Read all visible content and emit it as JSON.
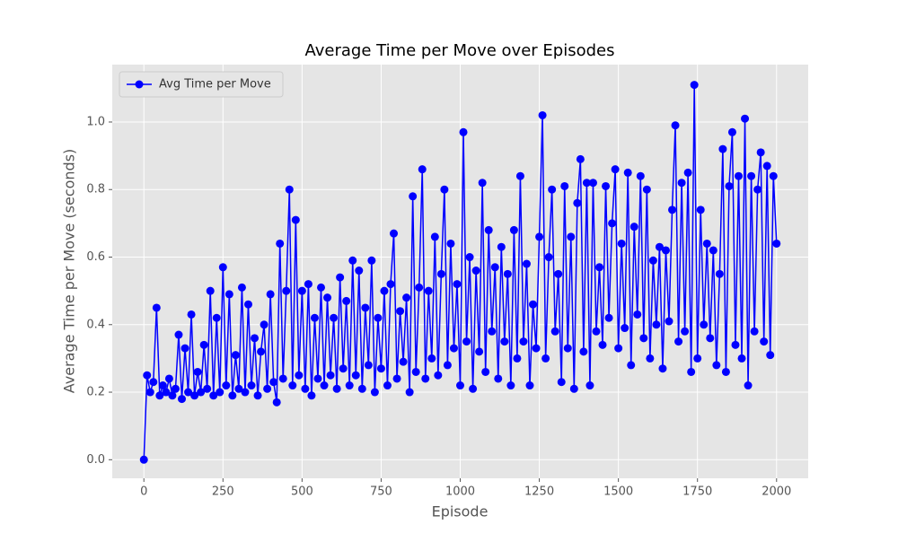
{
  "chart_data": {
    "type": "line",
    "title": "Average Time per Move over Episodes",
    "xlabel": "Episode",
    "ylabel": "Average Time per Move (seconds)",
    "xlim": [
      -100,
      2100
    ],
    "xticks": [
      0,
      250,
      500,
      750,
      1000,
      1250,
      1500,
      1750,
      2000
    ],
    "ylim": [
      -0.055,
      1.17
    ],
    "yticks": [
      {
        "value": 0,
        "label": "0.0"
      },
      0.2,
      0.4,
      0.6,
      0.8,
      {
        "value": 1,
        "label": "1.0"
      }
    ],
    "grid": true,
    "legend": "upper left",
    "x": [
      0,
      10,
      20,
      30,
      40,
      50,
      60,
      70,
      80,
      90,
      100,
      110,
      120,
      130,
      140,
      150,
      160,
      170,
      180,
      190,
      200,
      210,
      220,
      230,
      240,
      250,
      260,
      270,
      280,
      290,
      300,
      310,
      320,
      330,
      340,
      350,
      360,
      370,
      380,
      390,
      400,
      410,
      420,
      430,
      440,
      450,
      460,
      470,
      480,
      490,
      500,
      510,
      520,
      530,
      540,
      550,
      560,
      570,
      580,
      590,
      600,
      610,
      620,
      630,
      640,
      650,
      660,
      670,
      680,
      690,
      700,
      710,
      720,
      730,
      740,
      750,
      760,
      770,
      780,
      790,
      800,
      810,
      820,
      830,
      840,
      850,
      860,
      870,
      880,
      890,
      900,
      910,
      920,
      930,
      940,
      950,
      960,
      970,
      980,
      990,
      1000,
      1010,
      1020,
      1030,
      1040,
      1050,
      1060,
      1070,
      1080,
      1090,
      1100,
      1110,
      1120,
      1130,
      1140,
      1150,
      1160,
      1170,
      1180,
      1190,
      1200,
      1210,
      1220,
      1230,
      1240,
      1250,
      1260,
      1270,
      1280,
      1290,
      1300,
      1310,
      1320,
      1330,
      1340,
      1350,
      1360,
      1370,
      1380,
      1390,
      1400,
      1410,
      1420,
      1430,
      1440,
      1450,
      1460,
      1470,
      1480,
      1490,
      1500,
      1510,
      1520,
      1530,
      1540,
      1550,
      1560,
      1570,
      1580,
      1590,
      1600,
      1610,
      1620,
      1630,
      1640,
      1650,
      1660,
      1670,
      1680,
      1690,
      1700,
      1710,
      1720,
      1730,
      1740,
      1750,
      1760,
      1770,
      1780,
      1790,
      1800,
      1810,
      1820,
      1830,
      1840,
      1850,
      1860,
      1870,
      1880,
      1890,
      1900,
      1910,
      1920,
      1930,
      1940,
      1950,
      1960,
      1970,
      1980,
      1990,
      2000
    ],
    "series": [
      {
        "name": "Avg Time per Move",
        "color": "#0000ff",
        "values": [
          0.0,
          0.25,
          0.2,
          0.23,
          0.45,
          0.19,
          0.22,
          0.2,
          0.24,
          0.19,
          0.21,
          0.37,
          0.18,
          0.33,
          0.2,
          0.43,
          0.19,
          0.26,
          0.2,
          0.34,
          0.21,
          0.5,
          0.19,
          0.42,
          0.2,
          0.57,
          0.22,
          0.49,
          0.19,
          0.31,
          0.21,
          0.51,
          0.2,
          0.46,
          0.22,
          0.36,
          0.19,
          0.32,
          0.4,
          0.21,
          0.49,
          0.23,
          0.17,
          0.64,
          0.24,
          0.5,
          0.8,
          0.22,
          0.71,
          0.25,
          0.5,
          0.21,
          0.52,
          0.19,
          0.42,
          0.24,
          0.51,
          0.22,
          0.48,
          0.25,
          0.42,
          0.21,
          0.54,
          0.27,
          0.47,
          0.22,
          0.59,
          0.25,
          0.56,
          0.21,
          0.45,
          0.28,
          0.59,
          0.2,
          0.42,
          0.27,
          0.5,
          0.22,
          0.52,
          0.67,
          0.24,
          0.44,
          0.29,
          0.48,
          0.2,
          0.78,
          0.26,
          0.51,
          0.86,
          0.24,
          0.5,
          0.3,
          0.66,
          0.25,
          0.55,
          0.8,
          0.28,
          0.64,
          0.33,
          0.52,
          0.22,
          0.97,
          0.35,
          0.6,
          0.21,
          0.56,
          0.32,
          0.82,
          0.26,
          0.68,
          0.38,
          0.57,
          0.24,
          0.63,
          0.35,
          0.55,
          0.22,
          0.68,
          0.3,
          0.84,
          0.35,
          0.58,
          0.22,
          0.46,
          0.33,
          0.66,
          1.02,
          0.3,
          0.6,
          0.8,
          0.38,
          0.55,
          0.23,
          0.81,
          0.33,
          0.66,
          0.21,
          0.76,
          0.89,
          0.32,
          0.82,
          0.22,
          0.82,
          0.38,
          0.57,
          0.34,
          0.81,
          0.42,
          0.7,
          0.86,
          0.33,
          0.64,
          0.39,
          0.85,
          0.28,
          0.69,
          0.43,
          0.84,
          0.36,
          0.8,
          0.3,
          0.59,
          0.4,
          0.63,
          0.27,
          0.62,
          0.41,
          0.74,
          0.99,
          0.35,
          0.82,
          0.38,
          0.85,
          0.26,
          1.11,
          0.3,
          0.74,
          0.4,
          0.64,
          0.36,
          0.62,
          0.28,
          0.55,
          0.92,
          0.26,
          0.81,
          0.97,
          0.34,
          0.84,
          0.3,
          1.01,
          0.22,
          0.84,
          0.38,
          0.8,
          0.91,
          0.35,
          0.87,
          0.31,
          0.84,
          0.64
        ]
      }
    ]
  }
}
